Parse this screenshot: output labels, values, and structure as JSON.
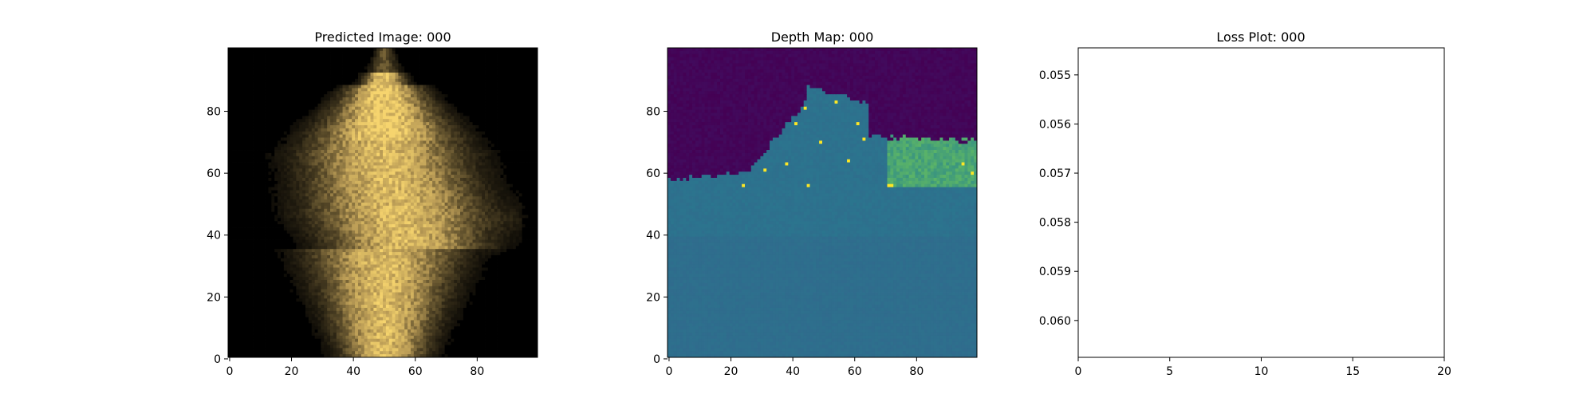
{
  "chart_data": [
    {
      "type": "heatmap",
      "title": "Predicted Image: 000",
      "x_ticks": [
        0,
        20,
        40,
        60,
        80
      ],
      "y_ticks": [
        0,
        20,
        40,
        60,
        80
      ],
      "xlim": [
        0,
        100
      ],
      "ylim": [
        100,
        0
      ],
      "grid_size": 100,
      "colors": {
        "background": "#000000",
        "peak": "#f6d46e",
        "mid": "#b89a55"
      }
    },
    {
      "type": "heatmap",
      "title": "Depth Map: 000",
      "x_ticks": [
        0,
        20,
        40,
        60,
        80
      ],
      "y_ticks": [
        0,
        20,
        40,
        60,
        80
      ],
      "xlim": [
        0,
        100
      ],
      "ylim": [
        100,
        0
      ],
      "grid_size": 100,
      "colors": {
        "low": "#440154",
        "mid": "#2a788e",
        "high": "#7ad151",
        "max": "#fde725"
      }
    },
    {
      "type": "line",
      "title": "Loss Plot: 000",
      "x_ticks": [
        0,
        5,
        10,
        15,
        20
      ],
      "y_ticks": [
        "0.055",
        "0.056",
        "0.057",
        "0.058",
        "0.059",
        "0.060"
      ],
      "xlim": [
        0,
        20
      ],
      "ylim": [
        0.05445,
        0.06075
      ],
      "series": []
    }
  ]
}
